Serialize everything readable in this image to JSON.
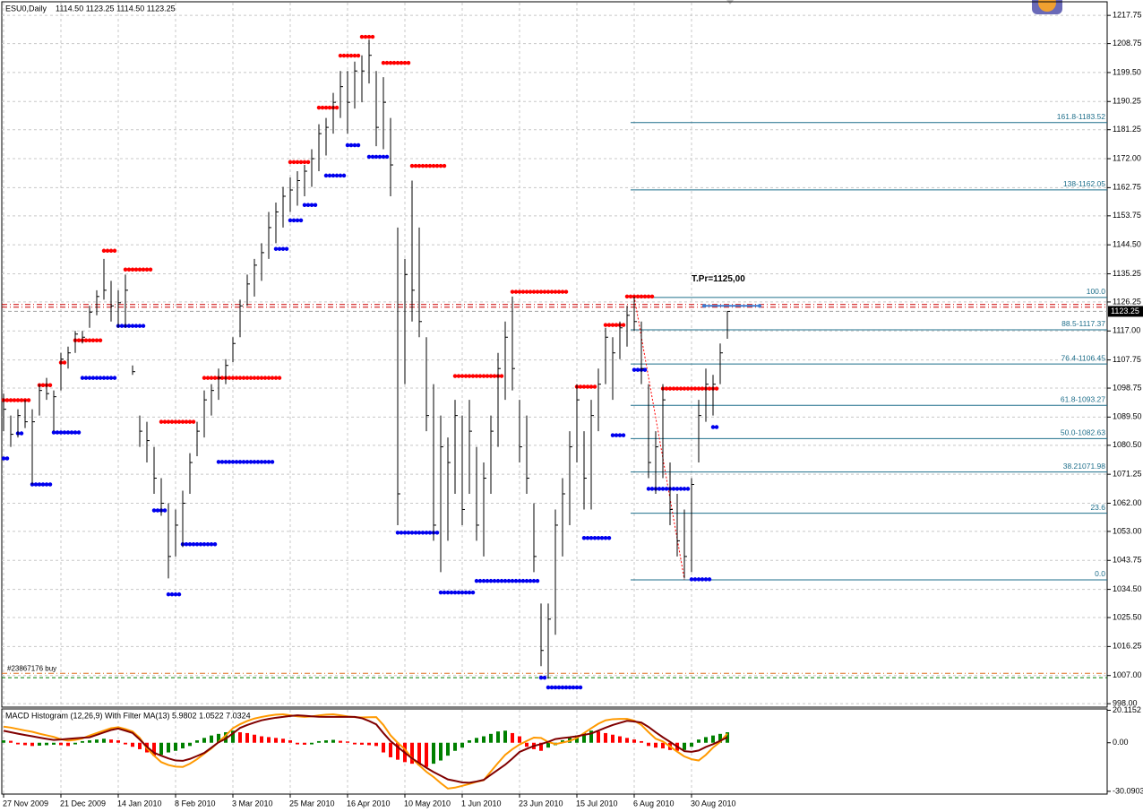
{
  "header": {
    "symbol": "ESU0,Daily",
    "ohlc": "1114.50 1123.25 1114.50 1123.25"
  },
  "chart_data": [
    {
      "type": "ohlc",
      "categories": [
        "27 Nov 2009",
        null,
        null,
        null,
        null,
        null,
        null,
        null,
        "21 Dec 2009",
        null,
        null,
        null,
        null,
        null,
        null,
        null,
        "14 Jan 2010",
        null,
        null,
        null,
        null,
        null,
        null,
        null,
        "8 Feb 2010",
        null,
        null,
        null,
        null,
        null,
        null,
        null,
        "3 Mar 2010",
        null,
        null,
        null,
        null,
        null,
        null,
        null,
        "25 Mar 2010",
        null,
        null,
        null,
        null,
        null,
        null,
        null,
        "16 Apr 2010",
        null,
        null,
        null,
        null,
        null,
        null,
        null,
        "10 May 2010",
        null,
        null,
        null,
        null,
        null,
        null,
        null,
        "1 Jun 2010",
        null,
        null,
        null,
        null,
        null,
        null,
        null,
        "23 Jun 2010",
        null,
        null,
        null,
        null,
        null,
        null,
        null,
        "15 Jul 2010",
        null,
        null,
        null,
        null,
        null,
        null,
        null,
        "6 Aug 2010",
        null,
        null,
        null,
        null,
        null,
        null,
        null,
        "30 Aug 2010",
        null,
        null,
        null,
        null,
        null
      ],
      "high": [
        1097,
        1090,
        1092,
        1095,
        1092,
        1100,
        1102,
        1098,
        1110,
        1112,
        1117,
        1117,
        1125,
        1130,
        1140,
        1133,
        1130,
        1135,
        1106,
        1090,
        1088,
        1080,
        1070,
        1062,
        1060,
        1066,
        1078,
        1088,
        1098,
        1100,
        1105,
        1108,
        1115,
        1127,
        1135,
        1140,
        1145,
        1155,
        1158,
        1163,
        1166,
        1168,
        1170,
        1175,
        1183,
        1185,
        1193,
        1200,
        1200,
        1203,
        1205,
        1210,
        1200,
        1198,
        1185,
        1150,
        1140,
        1165,
        1150,
        1115,
        1100,
        1090,
        1083,
        1095,
        1090,
        1095,
        1080,
        1075,
        1090,
        1110,
        1120,
        1128,
        1095,
        1090,
        1062,
        1030,
        1030,
        1060,
        1070,
        1085,
        1100,
        1085,
        1095,
        1105,
        1118,
        1115,
        1120,
        1125,
        1128,
        1120,
        1100,
        1085,
        1100,
        1075,
        1065,
        1060,
        1070,
        1095,
        1105,
        1103,
        1113,
        1123.25
      ],
      "low": [
        1085,
        1080,
        1083,
        1086,
        1068,
        1090,
        1095,
        1085,
        1098,
        1105,
        1110,
        1113,
        1118,
        1122,
        1127,
        1120,
        1118,
        1118,
        1103,
        1080,
        1075,
        1065,
        1058,
        1038,
        1045,
        1048,
        1065,
        1077,
        1083,
        1090,
        1095,
        1100,
        1107,
        1115,
        1125,
        1128,
        1133,
        1140,
        1145,
        1150,
        1155,
        1157,
        1160,
        1163,
        1168,
        1173,
        1180,
        1185,
        1180,
        1188,
        1190,
        1196,
        1176,
        1175,
        1160,
        1055,
        1100,
        1120,
        1115,
        1085,
        1050,
        1040,
        1050,
        1065,
        1055,
        1065,
        1050,
        1045,
        1065,
        1080,
        1095,
        1098,
        1075,
        1065,
        1040,
        1010,
        1006,
        1020,
        1045,
        1055,
        1075,
        1060,
        1060,
        1085,
        1100,
        1095,
        1108,
        1112,
        1117,
        1100,
        1070,
        1065,
        1070,
        1055,
        1045,
        1038,
        1040,
        1075,
        1088,
        1090,
        1100,
        1114.5
      ],
      "close": [
        1092,
        1084,
        1090,
        1088,
        1088,
        1098,
        1097,
        1096,
        1108,
        1110,
        1116,
        1115,
        1123,
        1128,
        1130,
        1125,
        1126,
        1130,
        1104,
        1085,
        1082,
        1070,
        1062,
        1045,
        1055,
        1062,
        1075,
        1085,
        1095,
        1098,
        1102,
        1106,
        1113,
        1125,
        1132,
        1138,
        1142,
        1150,
        1155,
        1160,
        1162,
        1165,
        1168,
        1172,
        1180,
        1182,
        1190,
        1195,
        1190,
        1200,
        1200,
        1205,
        1182,
        1190,
        1170,
        1065,
        1135,
        1130,
        1120,
        1090,
        1055,
        1080,
        1075,
        1090,
        1060,
        1085,
        1055,
        1070,
        1085,
        1105,
        1115,
        1105,
        1080,
        1070,
        1045,
        1015,
        1025,
        1055,
        1065,
        1080,
        1095,
        1070,
        1090,
        1100,
        1115,
        1110,
        1118,
        1122,
        1120,
        1105,
        1075,
        1080,
        1095,
        1060,
        1050,
        1045,
        1068,
        1090,
        1100,
        1100,
        1110,
        1123.25
      ],
      "color": "#000000",
      "ylim": [
        996.9,
        1221.8
      ],
      "yticks": [
        1217.75,
        1208.75,
        {
          "value": 1199.5,
          "label": "1199.50"
        },
        1190.25,
        1181.25,
        {
          "value": 1172,
          "label": "1172.00"
        },
        1162.75,
        1153.75,
        {
          "value": 1144.5,
          "label": "1144.50"
        },
        1135.25,
        1126.25,
        {
          "value": 1117,
          "label": "1117.00"
        },
        1107.75,
        1098.75,
        {
          "value": 1089.5,
          "label": "1089.50"
        },
        {
          "value": 1080.5,
          "label": "1080.50"
        },
        1071.25,
        {
          "value": 1062,
          "label": "1062.00"
        },
        {
          "value": 1053,
          "label": "1053.00"
        },
        1043.75,
        {
          "value": 1034.5,
          "label": "1034.50"
        },
        {
          "value": 1025.5,
          "label": "1025.50"
        },
        1016.25,
        {
          "value": 1007,
          "label": "1007.00"
        },
        {
          "value": 998,
          "label": "998.00"
        }
      ],
      "grid": true,
      "last_price": 1123.25,
      "resistance": {
        "color": "#ff0000",
        "levels": [
          [
            0,
            4,
            1094.9
          ],
          [
            5,
            7,
            1099.7
          ],
          [
            8,
            9,
            1106.9
          ],
          [
            10,
            14,
            1114.0
          ],
          [
            14,
            16,
            1142.6
          ],
          [
            17,
            21,
            1136.6
          ],
          [
            22,
            27,
            1088.0
          ],
          [
            28,
            39,
            1102.0
          ],
          [
            40,
            43,
            1170.9
          ],
          [
            44,
            47,
            1188.3
          ],
          [
            47,
            50,
            1204.9
          ],
          [
            50,
            52,
            1210.9
          ],
          [
            53,
            57,
            1202.6
          ],
          [
            57,
            62,
            1169.7
          ],
          [
            63,
            70,
            1102.6
          ],
          [
            71,
            79,
            1129.5
          ],
          [
            80,
            83,
            1099.2
          ],
          [
            84,
            87,
            1118.9
          ],
          [
            87,
            91,
            1128.0
          ],
          [
            92,
            100,
            1098.6
          ]
        ]
      },
      "support": {
        "color": "#0000ee",
        "levels": [
          [
            0,
            1,
            1076.3
          ],
          [
            2,
            3,
            1084.3
          ],
          [
            4,
            7,
            1068.0
          ],
          [
            7,
            11,
            1084.6
          ],
          [
            11,
            16,
            1102.0
          ],
          [
            16,
            20,
            1118.6
          ],
          [
            21,
            23,
            1059.7
          ],
          [
            23,
            25,
            1032.9
          ],
          [
            25,
            30,
            1048.9
          ],
          [
            30,
            38,
            1075.2
          ],
          [
            38,
            40,
            1143.2
          ],
          [
            40,
            42,
            1152.3
          ],
          [
            42,
            44,
            1157.2
          ],
          [
            45,
            48,
            1166.6
          ],
          [
            48,
            50,
            1176.3
          ],
          [
            51,
            54,
            1172.6
          ],
          [
            55,
            61,
            1052.6
          ],
          [
            61,
            66,
            1033.5
          ],
          [
            66,
            75,
            1037.2
          ],
          [
            75,
            76,
            1006.3
          ],
          [
            76,
            81,
            1003.2
          ],
          [
            81,
            85,
            1050.9
          ],
          [
            85,
            87,
            1083.7
          ],
          [
            88,
            90,
            1104.6
          ],
          [
            90,
            96,
            1066.6
          ],
          [
            96,
            99,
            1037.7
          ],
          [
            99,
            100,
            1086.3
          ]
        ]
      },
      "fibonacci": {
        "color": "#1f6f8b",
        "levels": [
          {
            "label": "161.8-1183.52",
            "price": 1183.52
          },
          {
            "label": "138-1162.05",
            "price": 1162.05
          },
          {
            "label": "100.0",
            "price": 1127.71
          },
          {
            "label": "88.5-1117.37",
            "price": 1117.37
          },
          {
            "label": "76.4-1106.45",
            "price": 1106.45
          },
          {
            "label": "61.8-1093.27",
            "price": 1093.27
          },
          {
            "label": "50.0-1082.63",
            "price": 1082.63
          },
          {
            "label": "38.21071.98",
            "price": 1071.98
          },
          {
            "label": "23.6",
            "price": 1058.82
          },
          {
            "label": "0.0",
            "price": 1037.54
          }
        ]
      },
      "target": {
        "label": "T.Pr=1125,00",
        "value": 1125.0,
        "color": "#3a7fd5"
      },
      "hlines": [
        {
          "value": 1125.45,
          "color": "#cc0000"
        },
        {
          "value": 1124.6,
          "color": "#cc0000"
        },
        {
          "value": 1123.25,
          "color": "#a0a0a0"
        },
        {
          "value": 1007.7,
          "color": "#e07020"
        },
        {
          "value": 1006.3,
          "color": "#008000"
        }
      ],
      "order_label": "#23867176 buy",
      "zigzag": {
        "color": "#ff0000",
        "points": [
          [
            88,
            1128.0
          ],
          [
            95,
            1037.7
          ]
        ]
      }
    },
    {
      "type": "macd",
      "title": "MACD Histogram (12,26,9) With Filter MA(13) 5.9802 1.0522 7.0324",
      "ylim": [
        -31.8,
        20.4
      ],
      "yticks": [
        20.1152,
        {
          "value": 0,
          "label": "0.00"
        },
        -30.0903
      ],
      "histogram": {
        "up_color": "#008000",
        "down_color": "#ff0000",
        "values": [
          1.5,
          1.2,
          -1.0,
          -1.5,
          -2.0,
          -1.8,
          -1.5,
          -1.2,
          -1.5,
          -2.0,
          -1.0,
          1.0,
          1.5,
          2.0,
          2.5,
          2.0,
          1.5,
          -1.0,
          -2.5,
          -4.0,
          -6.0,
          -8.0,
          -7.5,
          -6.0,
          -5.0,
          -3.5,
          -2.0,
          1.5,
          3.0,
          4.5,
          5.5,
          6.5,
          7.5,
          6.5,
          6.0,
          5.0,
          4.0,
          3.5,
          3.0,
          2.5,
          1.5,
          -1.0,
          -1.2,
          -1.0,
          1.0,
          1.5,
          1.8,
          1.2,
          0.8,
          -1.0,
          -1.2,
          -1.5,
          -2.0,
          -6.0,
          -9.0,
          -10.5,
          -12.0,
          -13.0,
          -14.0,
          -15.0,
          -13.0,
          -11.0,
          -8.0,
          -5.0,
          -3.0,
          1.5,
          3.0,
          4.0,
          5.5,
          7.0,
          7.5,
          6.0,
          4.0,
          -2.5,
          -4.0,
          -5.0,
          -3.0,
          -1.5,
          1.5,
          3.0,
          4.5,
          6.0,
          7.5,
          7.0,
          6.0,
          5.0,
          4.0,
          3.0,
          2.0,
          1.0,
          -2.0,
          -3.0,
          -3.5,
          -4.5,
          -5.0,
          -4.5,
          -2.5,
          2.0,
          3.5,
          4.5,
          5.5,
          6.5
        ]
      },
      "series": [
        {
          "color": "#ff9900",
          "values": [
            10.0,
            9.4,
            8.5,
            7.6,
            6.8,
            5.6,
            4.6,
            3.6,
            2.2,
            1.3,
            1.8,
            2.7,
            4.5,
            6.0,
            7.5,
            9.0,
            9.6,
            8.5,
            7.0,
            3.0,
            -3.4,
            -8.0,
            -12.0,
            -13.8,
            -14.8,
            -15.0,
            -13.0,
            -10.2,
            -6.8,
            -3.5,
            0.5,
            4.5,
            9.0,
            11.5,
            13.5,
            15.0,
            16.0,
            16.8,
            17.4,
            17.6,
            17.0,
            16.4,
            16.0,
            16.3,
            16.9,
            17.4,
            17.6,
            17.0,
            16.3,
            15.9,
            15.7,
            15.8,
            15.9,
            11.0,
            4.6,
            0.0,
            -4.0,
            -9.7,
            -14.0,
            -18.0,
            -21.2,
            -25.0,
            -28.4,
            -27.8,
            -26.7,
            -25.5,
            -24.2,
            -23.2,
            -17.8,
            -12.5,
            -7.5,
            -4.0,
            -1.1,
            1.1,
            3.2,
            3.0,
            0.5,
            -0.8,
            0.1,
            1.1,
            3.0,
            6.0,
            9.0,
            11.8,
            13.9,
            14.6,
            14.8,
            14.8,
            13.7,
            11.0,
            6.6,
            2.5,
            0.8,
            -2.3,
            -5.5,
            -8.5,
            -10.2,
            -11.0,
            -7.5,
            -3.0,
            0.5,
            5.7
          ]
        },
        {
          "color": "#800000",
          "values": [
            7.4,
            6.5,
            5.6,
            4.8,
            4.0,
            3.2,
            2.4,
            1.7,
            2.0,
            2.4,
            2.8,
            3.1,
            3.4,
            4.9,
            6.4,
            7.9,
            8.8,
            7.5,
            6.1,
            2.0,
            -2.5,
            -6.2,
            -8.0,
            -9.7,
            -11.0,
            -11.2,
            -10.0,
            -8.2,
            -6.3,
            -3.0,
            0.3,
            2.5,
            5.8,
            9.2,
            11.0,
            12.5,
            13.9,
            14.8,
            15.5,
            16.0,
            16.6,
            17.0,
            16.7,
            16.4,
            16.1,
            16.0,
            16.0,
            16.0,
            16.0,
            16.0,
            15.2,
            13.5,
            11.4,
            6.0,
            1.0,
            -2.6,
            -6.2,
            -9.7,
            -12.6,
            -15.5,
            -18.1,
            -20.4,
            -22.7,
            -23.6,
            -24.6,
            -24.8,
            -24.0,
            -23.0,
            -19.8,
            -16.7,
            -13.6,
            -9.8,
            -5.7,
            -3.8,
            -2.0,
            -0.8,
            0.6,
            2.3,
            2.9,
            3.4,
            4.0,
            4.9,
            5.7,
            7.5,
            9.3,
            11.0,
            12.3,
            13.6,
            13.2,
            12.5,
            9.8,
            6.5,
            3.4,
            0.6,
            -2.4,
            -5.2,
            -5.6,
            -4.8,
            -2.6,
            -0.9,
            1.2,
            3.4
          ]
        }
      ]
    }
  ]
}
